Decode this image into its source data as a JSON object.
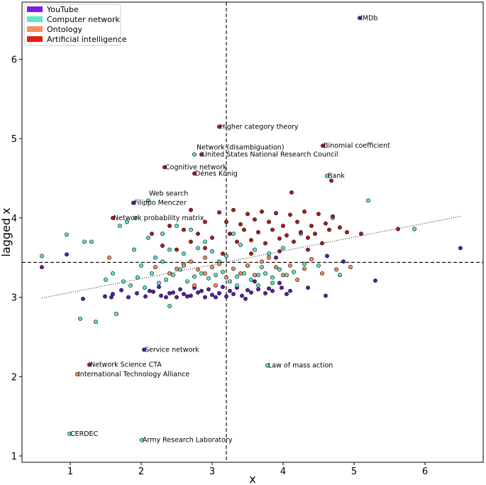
{
  "chart_data": {
    "type": "scatter",
    "title": "",
    "xlabel": "x",
    "ylabel": "lagged x",
    "xlim": [
      0.32,
      6.82
    ],
    "ylim": [
      0.92,
      6.72
    ],
    "xticks": [
      "1",
      "2",
      "3",
      "4",
      "5",
      "6"
    ],
    "yticks": [
      "1",
      "2",
      "3",
      "4",
      "5",
      "6"
    ],
    "xtick_values": [
      1,
      2,
      3,
      4,
      5,
      6
    ],
    "ytick_values": [
      1,
      2,
      3,
      4,
      5,
      6
    ],
    "mean_x": 3.2,
    "mean_y": 3.44,
    "trend_line": {
      "x": [
        0.6,
        6.5
      ],
      "y": [
        2.99,
        4.02
      ]
    },
    "legend": [
      {
        "label": "YouTube",
        "color": "#7a1fe0"
      },
      {
        "label": "Computer network",
        "color": "#5ce8c8"
      },
      {
        "label": "Ontology",
        "color": "#f4905a"
      },
      {
        "label": "Artificial intelligence",
        "color": "#e51d12"
      }
    ],
    "series": [
      {
        "name": "YouTube",
        "color": "#5a19b4",
        "points": [
          [
            5.08,
            6.52
          ],
          [
            1.89,
            4.19
          ],
          [
            2.04,
            2.34
          ],
          [
            0.6,
            3.38
          ],
          [
            0.95,
            3.54
          ],
          [
            6.5,
            3.62
          ],
          [
            5.3,
            3.21
          ],
          [
            4.6,
            3.02
          ],
          [
            3.47,
            2.98
          ],
          [
            1.18,
            2.98
          ],
          [
            1.49,
            3.01
          ],
          [
            1.6,
            3.04
          ],
          [
            1.72,
            3.09
          ],
          [
            1.82,
            3.0
          ],
          [
            1.94,
            3.05
          ],
          [
            2.06,
            3.01
          ],
          [
            2.17,
            3.07
          ],
          [
            2.28,
            3.02
          ],
          [
            2.4,
            3.05
          ],
          [
            2.5,
            3.0
          ],
          [
            2.6,
            3.04
          ],
          [
            2.7,
            3.02
          ],
          [
            2.8,
            3.06
          ],
          [
            2.9,
            3.0
          ],
          [
            3.0,
            3.03
          ],
          [
            3.1,
            3.05
          ],
          [
            3.2,
            3.01
          ],
          [
            3.3,
            3.04
          ],
          [
            3.42,
            3.02
          ],
          [
            3.55,
            3.06
          ],
          [
            3.65,
            3.1
          ],
          [
            3.75,
            3.05
          ],
          [
            3.85,
            3.08
          ],
          [
            3.98,
            3.12
          ],
          [
            4.1,
            3.08
          ],
          [
            4.35,
            3.12
          ],
          [
            2.55,
            3.1
          ],
          [
            2.75,
            3.12
          ],
          [
            2.95,
            3.1
          ],
          [
            3.15,
            3.13
          ],
          [
            3.35,
            3.12
          ],
          [
            1.58,
            3.0
          ],
          [
            2.12,
            3.08
          ],
          [
            2.45,
            3.06
          ],
          [
            2.65,
            3.01
          ],
          [
            2.85,
            3.08
          ],
          [
            3.05,
            3.0
          ],
          [
            3.25,
            3.08
          ],
          [
            3.5,
            3.09
          ],
          [
            3.8,
            3.11
          ],
          [
            4.05,
            3.04
          ],
          [
            2.35,
            3.0
          ],
          [
            3.95,
            3.18
          ],
          [
            3.6,
            3.2
          ],
          [
            2.25,
            3.13
          ],
          [
            4.62,
            3.52
          ],
          [
            3.9,
            3.5
          ],
          [
            4.85,
            3.45
          ]
        ]
      },
      {
        "name": "Computer network",
        "color": "#5ce8c8",
        "points": [
          [
            0.99,
            1.28
          ],
          [
            2.01,
            1.2
          ],
          [
            3.78,
            2.14
          ],
          [
            1.14,
            2.73
          ],
          [
            1.36,
            2.69
          ],
          [
            1.65,
            2.79
          ],
          [
            2.4,
            2.89
          ],
          [
            0.95,
            3.79
          ],
          [
            1.2,
            3.7
          ],
          [
            1.3,
            3.7
          ],
          [
            1.7,
            3.9
          ],
          [
            1.8,
            3.95
          ],
          [
            0.6,
            3.52
          ],
          [
            2.75,
            4.8
          ],
          [
            4.62,
            4.53
          ],
          [
            1.75,
            3.2
          ],
          [
            1.85,
            3.15
          ],
          [
            1.95,
            3.25
          ],
          [
            2.05,
            3.12
          ],
          [
            2.15,
            3.3
          ],
          [
            2.25,
            3.18
          ],
          [
            2.35,
            3.22
          ],
          [
            2.45,
            3.28
          ],
          [
            2.55,
            3.35
          ],
          [
            2.65,
            3.2
          ],
          [
            2.75,
            3.26
          ],
          [
            2.85,
            3.3
          ],
          [
            2.95,
            3.24
          ],
          [
            3.05,
            3.28
          ],
          [
            3.15,
            3.32
          ],
          [
            3.25,
            3.2
          ],
          [
            3.35,
            3.26
          ],
          [
            3.45,
            3.3
          ],
          [
            3.55,
            3.22
          ],
          [
            3.65,
            3.28
          ],
          [
            3.75,
            3.3
          ],
          [
            3.85,
            3.25
          ],
          [
            3.95,
            3.35
          ],
          [
            4.05,
            3.28
          ],
          [
            4.15,
            3.32
          ],
          [
            2.2,
            3.5
          ],
          [
            2.4,
            3.6
          ],
          [
            2.6,
            3.55
          ],
          [
            2.8,
            3.62
          ],
          [
            3.0,
            3.58
          ],
          [
            3.2,
            3.52
          ],
          [
            3.4,
            3.66
          ],
          [
            3.6,
            3.6
          ],
          [
            3.8,
            3.55
          ],
          [
            4.0,
            3.62
          ],
          [
            2.1,
            3.75
          ],
          [
            2.3,
            3.8
          ],
          [
            2.5,
            3.9
          ],
          [
            2.7,
            3.85
          ],
          [
            2.9,
            3.7
          ],
          [
            1.9,
            3.6
          ],
          [
            1.6,
            3.3
          ],
          [
            1.5,
            3.22
          ],
          [
            2.0,
            3.4
          ],
          [
            3.1,
            3.45
          ],
          [
            3.5,
            3.4
          ],
          [
            3.7,
            3.38
          ],
          [
            4.3,
            3.42
          ],
          [
            4.5,
            3.4
          ],
          [
            4.8,
            3.28
          ],
          [
            3.3,
            3.8
          ],
          [
            4.25,
            3.8
          ],
          [
            5.2,
            4.22
          ],
          [
            5.85,
            3.86
          ],
          [
            4.7,
            4.0
          ],
          [
            2.1,
            4.22
          ],
          [
            1.92,
            4.0
          ],
          [
            2.3,
            3.45
          ],
          [
            2.6,
            3.42
          ],
          [
            3.65,
            3.15
          ],
          [
            3.85,
            3.18
          ],
          [
            3.35,
            3.15
          ]
        ]
      },
      {
        "name": "Ontology",
        "color": "#f4905a",
        "points": [
          [
            1.1,
            2.03
          ],
          [
            2.6,
            3.4
          ],
          [
            2.7,
            3.45
          ],
          [
            2.8,
            3.35
          ],
          [
            2.9,
            3.3
          ],
          [
            3.0,
            3.38
          ],
          [
            3.1,
            3.42
          ],
          [
            3.3,
            3.36
          ],
          [
            3.5,
            3.4
          ],
          [
            3.7,
            3.45
          ],
          [
            3.9,
            3.38
          ],
          [
            4.1,
            3.4
          ],
          [
            4.3,
            3.36
          ],
          [
            4.55,
            3.3
          ],
          [
            4.75,
            3.35
          ],
          [
            2.4,
            3.3
          ],
          [
            2.5,
            3.36
          ],
          [
            3.2,
            3.25
          ],
          [
            3.4,
            3.3
          ],
          [
            3.6,
            3.28
          ],
          [
            4.0,
            3.28
          ],
          [
            4.2,
            3.22
          ],
          [
            2.9,
            3.5
          ],
          [
            3.8,
            3.5
          ],
          [
            2.2,
            3.38
          ],
          [
            4.4,
            3.48
          ],
          [
            4.95,
            3.38
          ],
          [
            3.05,
            3.15
          ],
          [
            2.75,
            3.15
          ],
          [
            1.55,
            3.5
          ]
        ]
      },
      {
        "name": "Artificial intelligence",
        "color": "#b31a12",
        "points": [
          [
            3.1,
            5.15
          ],
          [
            4.56,
            4.91
          ],
          [
            2.85,
            4.8
          ],
          [
            2.33,
            4.64
          ],
          [
            2.75,
            4.56
          ],
          [
            4.68,
            4.47
          ],
          [
            4.12,
            4.32
          ],
          [
            1.6,
            4.0
          ],
          [
            1.27,
            2.15
          ],
          [
            2.7,
            4.1
          ],
          [
            3.1,
            4.07
          ],
          [
            3.3,
            4.1
          ],
          [
            3.5,
            4.05
          ],
          [
            3.7,
            4.08
          ],
          [
            3.9,
            4.06
          ],
          [
            4.1,
            4.04
          ],
          [
            4.3,
            4.08
          ],
          [
            4.5,
            4.05
          ],
          [
            4.7,
            4.02
          ],
          [
            3.2,
            3.95
          ],
          [
            3.4,
            3.92
          ],
          [
            3.6,
            3.98
          ],
          [
            3.8,
            3.95
          ],
          [
            4.0,
            3.9
          ],
          [
            4.2,
            3.95
          ],
          [
            4.4,
            3.9
          ],
          [
            4.6,
            3.93
          ],
          [
            4.8,
            3.88
          ],
          [
            3.25,
            3.8
          ],
          [
            3.45,
            3.85
          ],
          [
            3.65,
            3.82
          ],
          [
            3.85,
            3.85
          ],
          [
            4.05,
            3.78
          ],
          [
            4.25,
            3.82
          ],
          [
            4.45,
            3.8
          ],
          [
            4.65,
            3.85
          ],
          [
            4.9,
            3.82
          ],
          [
            3.35,
            3.7
          ],
          [
            3.55,
            3.72
          ],
          [
            3.75,
            3.68
          ],
          [
            3.95,
            3.74
          ],
          [
            4.15,
            3.7
          ],
          [
            4.35,
            3.75
          ],
          [
            4.55,
            3.68
          ],
          [
            5.1,
            3.8
          ],
          [
            5.62,
            3.86
          ],
          [
            2.4,
            3.9
          ],
          [
            2.6,
            3.85
          ],
          [
            2.8,
            3.8
          ],
          [
            3.0,
            3.75
          ],
          [
            2.3,
            3.65
          ],
          [
            2.5,
            3.6
          ],
          [
            2.7,
            3.7
          ],
          [
            2.9,
            3.62
          ],
          [
            2.15,
            3.8
          ],
          [
            3.15,
            3.55
          ],
          [
            3.55,
            3.55
          ],
          [
            3.95,
            3.58
          ],
          [
            4.35,
            3.6
          ],
          [
            2.9,
            3.95
          ]
        ]
      }
    ],
    "annotations": [
      {
        "text": "IMDb",
        "x": 5.08,
        "y": 6.52
      },
      {
        "text": "Higher category theory",
        "x": 3.1,
        "y": 5.15
      },
      {
        "text": "Binomial coefficient",
        "x": 4.56,
        "y": 4.91
      },
      {
        "text": "Network (disambiguation)",
        "x": 2.77,
        "y": 4.89
      },
      {
        "text": "United States National Research Council",
        "x": 2.85,
        "y": 4.8
      },
      {
        "text": "Cognitive network",
        "x": 2.33,
        "y": 4.64
      },
      {
        "text": "Dénes Kőnig",
        "x": 2.75,
        "y": 4.56
      },
      {
        "text": "Bank",
        "x": 4.62,
        "y": 4.53
      },
      {
        "text": "Web search",
        "x": 2.1,
        "y": 4.31
      },
      {
        "text": "Filippo Menczer",
        "x": 1.89,
        "y": 4.19
      },
      {
        "text": "Network probability matrix",
        "x": 1.6,
        "y": 4.0
      },
      {
        "text": "Service network",
        "x": 2.04,
        "y": 2.34
      },
      {
        "text": "Network Science CTA",
        "x": 1.27,
        "y": 2.15
      },
      {
        "text": "Law of mass action",
        "x": 3.78,
        "y": 2.14
      },
      {
        "text": "International Technology Alliance",
        "x": 1.1,
        "y": 2.03
      },
      {
        "text": "CERDEC",
        "x": 0.99,
        "y": 1.28
      },
      {
        "text": "Army Research Laboratory",
        "x": 2.01,
        "y": 1.2
      }
    ]
  }
}
